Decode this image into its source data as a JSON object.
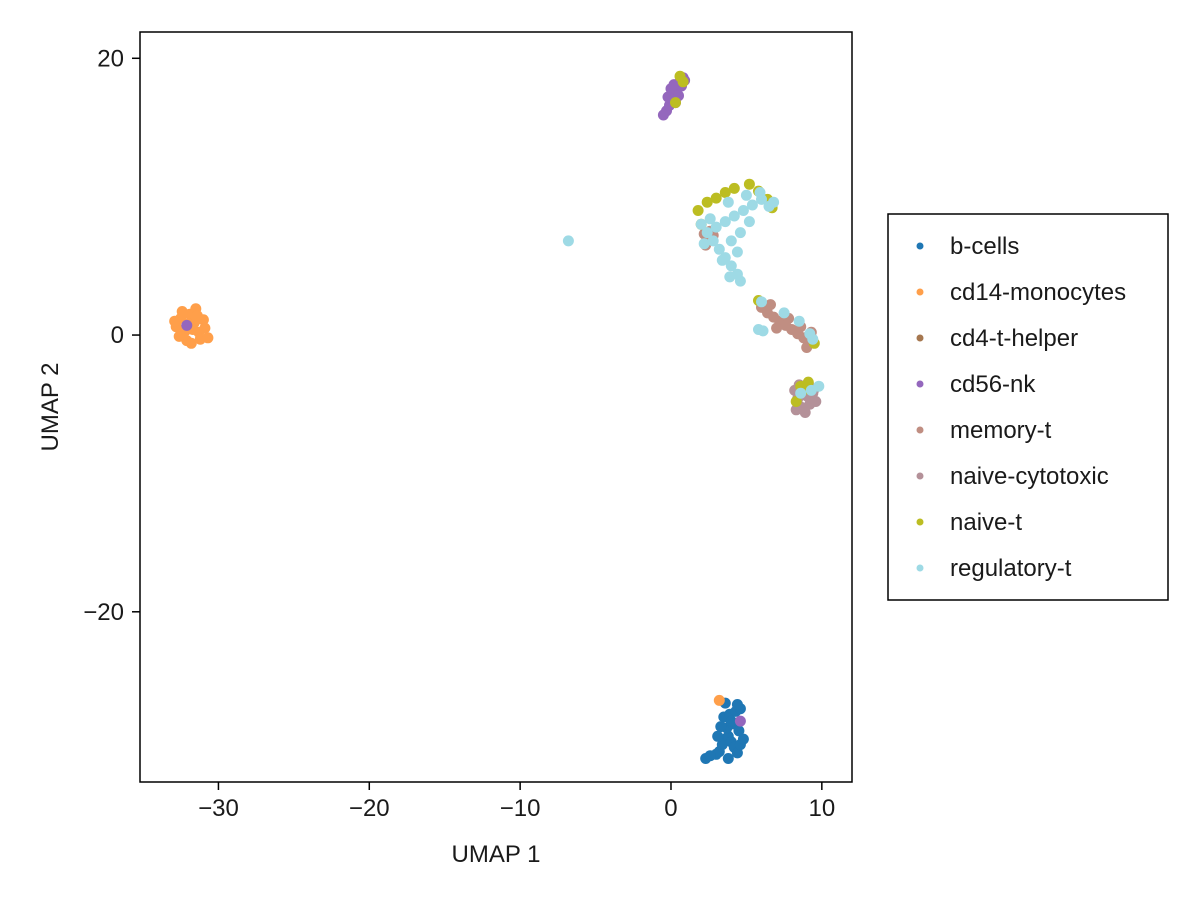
{
  "chart_data": {
    "type": "scatter",
    "title": "",
    "xlabel": "UMAP 1",
    "ylabel": "UMAP 2",
    "xlim": [
      -35.2,
      12.0
    ],
    "ylim": [
      -32.3,
      21.9
    ],
    "x_ticks": [
      -30,
      -20,
      -10,
      0,
      10
    ],
    "x_tick_labels": [
      "−30",
      "−20",
      "−10",
      "0",
      "10"
    ],
    "y_ticks": [
      -20,
      0,
      20
    ],
    "y_tick_labels": [
      "−20",
      "0",
      "20"
    ],
    "grid": false,
    "legend_position": "right",
    "series": [
      {
        "name": "b-cells",
        "color": "#1f77b4",
        "points": [
          [
            3.0,
            -30.3
          ],
          [
            3.2,
            -30.1
          ],
          [
            3.4,
            -29.6
          ],
          [
            3.6,
            -29.2
          ],
          [
            3.8,
            -29.0
          ],
          [
            4.0,
            -29.4
          ],
          [
            4.2,
            -29.8
          ],
          [
            4.4,
            -30.2
          ],
          [
            4.6,
            -29.6
          ],
          [
            3.7,
            -28.4
          ],
          [
            4.1,
            -28.1
          ],
          [
            4.5,
            -28.6
          ],
          [
            3.5,
            -27.6
          ],
          [
            3.9,
            -27.4
          ],
          [
            4.3,
            -27.2
          ],
          [
            4.6,
            -27.0
          ],
          [
            3.6,
            -26.6
          ],
          [
            3.8,
            -30.6
          ],
          [
            2.3,
            -30.6
          ],
          [
            2.6,
            -30.4
          ],
          [
            3.1,
            -29.0
          ],
          [
            4.8,
            -29.2
          ],
          [
            3.3,
            -28.3
          ],
          [
            4.0,
            -27.9
          ],
          [
            4.4,
            -26.7
          ]
        ]
      },
      {
        "name": "cd14-monocytes",
        "color": "#ff9f4a",
        "points": [
          [
            -32.8,
            0.6
          ],
          [
            -32.5,
            1.2
          ],
          [
            -32.2,
            0.3
          ],
          [
            -31.9,
            1.5
          ],
          [
            -31.6,
            0.9
          ],
          [
            -31.3,
            0.2
          ],
          [
            -31.0,
            1.1
          ],
          [
            -32.1,
            -0.4
          ],
          [
            -31.8,
            -0.6
          ],
          [
            -31.5,
            1.9
          ],
          [
            -32.4,
            1.7
          ],
          [
            -30.9,
            0.5
          ],
          [
            -31.2,
            -0.3
          ],
          [
            -32.6,
            -0.1
          ],
          [
            -31.7,
            0.4
          ],
          [
            -30.7,
            -0.2
          ],
          [
            -32.9,
            1.0
          ],
          [
            -31.4,
            1.4
          ],
          [
            -32.0,
            0.8
          ],
          [
            3.2,
            -26.4
          ]
        ]
      },
      {
        "name": "cd4-t-helper",
        "color": "#a6774f",
        "points": []
      },
      {
        "name": "cd56-nk",
        "color": "#9467bd",
        "points": [
          [
            -0.3,
            16.2
          ],
          [
            -0.1,
            16.6
          ],
          [
            0.1,
            17.0
          ],
          [
            0.2,
            17.5
          ],
          [
            0.4,
            17.9
          ],
          [
            0.6,
            18.3
          ],
          [
            0.8,
            18.6
          ],
          [
            -0.5,
            15.9
          ],
          [
            0.0,
            17.8
          ],
          [
            0.3,
            16.8
          ],
          [
            0.5,
            17.3
          ],
          [
            0.7,
            18.0
          ],
          [
            -0.2,
            17.2
          ],
          [
            0.9,
            18.4
          ],
          [
            0.2,
            18.1
          ],
          [
            -32.1,
            0.7
          ],
          [
            4.6,
            -27.9
          ]
        ]
      },
      {
        "name": "memory-t",
        "color": "#c08e82",
        "points": [
          [
            6.0,
            2.0
          ],
          [
            6.4,
            1.6
          ],
          [
            6.8,
            1.3
          ],
          [
            7.2,
            1.0
          ],
          [
            7.6,
            0.7
          ],
          [
            8.0,
            0.4
          ],
          [
            8.4,
            0.1
          ],
          [
            8.8,
            -0.2
          ],
          [
            9.1,
            -0.5
          ],
          [
            9.3,
            0.2
          ],
          [
            7.0,
            0.5
          ],
          [
            7.8,
            1.2
          ],
          [
            8.6,
            0.6
          ],
          [
            6.6,
            2.2
          ],
          [
            9.0,
            -0.9
          ],
          [
            2.2,
            7.3
          ],
          [
            2.4,
            6.9
          ],
          [
            2.6,
            7.5
          ],
          [
            2.3,
            6.5
          ],
          [
            2.8,
            7.2
          ]
        ]
      },
      {
        "name": "naive-cytotoxic",
        "color": "#b49199",
        "points": [
          [
            8.2,
            -4.0
          ],
          [
            8.4,
            -4.6
          ],
          [
            8.6,
            -5.2
          ],
          [
            8.8,
            -3.8
          ],
          [
            9.0,
            -4.4
          ],
          [
            9.2,
            -5.0
          ],
          [
            9.4,
            -4.2
          ],
          [
            9.6,
            -4.8
          ],
          [
            8.5,
            -3.6
          ],
          [
            9.1,
            -3.5
          ],
          [
            8.3,
            -5.4
          ],
          [
            9.5,
            -3.9
          ],
          [
            8.7,
            -4.1
          ],
          [
            8.9,
            -5.6
          ]
        ]
      },
      {
        "name": "naive-t",
        "color": "#bcbd22",
        "points": [
          [
            0.6,
            18.7
          ],
          [
            0.3,
            16.8
          ],
          [
            0.8,
            18.3
          ],
          [
            1.8,
            9.0
          ],
          [
            2.4,
            9.6
          ],
          [
            3.0,
            9.9
          ],
          [
            3.6,
            10.3
          ],
          [
            4.2,
            10.6
          ],
          [
            5.2,
            10.9
          ],
          [
            5.8,
            10.4
          ],
          [
            6.4,
            9.8
          ],
          [
            6.7,
            9.2
          ],
          [
            2.0,
            8.0
          ],
          [
            8.6,
            -3.7
          ],
          [
            9.1,
            -3.4
          ],
          [
            8.3,
            -4.8
          ],
          [
            9.5,
            -0.6
          ],
          [
            5.8,
            2.5
          ],
          [
            8.9,
            -3.9
          ]
        ]
      },
      {
        "name": "regulatory-t",
        "color": "#9edae5",
        "points": [
          [
            -6.8,
            6.8
          ],
          [
            2.0,
            8.0
          ],
          [
            2.4,
            7.4
          ],
          [
            2.8,
            6.8
          ],
          [
            3.2,
            6.2
          ],
          [
            3.6,
            5.6
          ],
          [
            4.0,
            5.0
          ],
          [
            4.4,
            4.4
          ],
          [
            4.6,
            3.9
          ],
          [
            3.0,
            7.8
          ],
          [
            3.6,
            8.2
          ],
          [
            4.2,
            8.6
          ],
          [
            4.8,
            9.0
          ],
          [
            5.4,
            9.4
          ],
          [
            6.0,
            9.8
          ],
          [
            6.5,
            9.3
          ],
          [
            5.2,
            8.2
          ],
          [
            4.6,
            7.4
          ],
          [
            4.0,
            6.8
          ],
          [
            3.4,
            5.4
          ],
          [
            2.6,
            8.4
          ],
          [
            3.8,
            9.6
          ],
          [
            5.0,
            10.1
          ],
          [
            5.9,
            10.3
          ],
          [
            6.8,
            9.6
          ],
          [
            4.4,
            6.0
          ],
          [
            3.9,
            4.2
          ],
          [
            2.2,
            6.6
          ],
          [
            6.0,
            2.4
          ],
          [
            7.5,
            1.6
          ],
          [
            8.5,
            1.0
          ],
          [
            9.2,
            0.1
          ],
          [
            9.4,
            -0.3
          ],
          [
            6.1,
            0.3
          ],
          [
            5.8,
            0.4
          ],
          [
            9.3,
            -4.0
          ],
          [
            9.8,
            -3.7
          ],
          [
            8.6,
            -4.2
          ]
        ]
      }
    ]
  }
}
